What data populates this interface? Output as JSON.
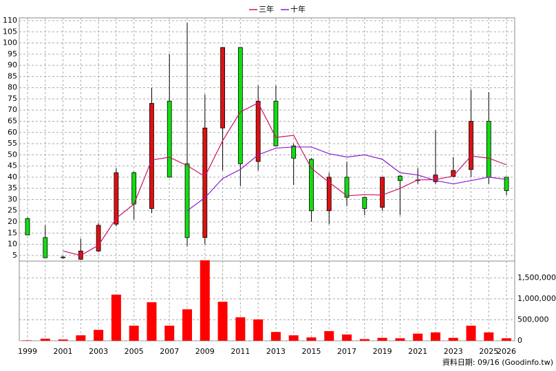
{
  "chart_data": {
    "type": "candlestick",
    "categories": [
      "1999",
      null,
      "2001",
      null,
      "2003",
      null,
      "2005",
      null,
      "2007",
      null,
      "2009",
      null,
      "2011",
      null,
      "2013",
      null,
      "2015",
      null,
      "2017",
      null,
      "2019",
      null,
      "2021",
      null,
      "2023",
      null,
      "2025",
      "2026"
    ],
    "open": [
      21.5,
      13,
      4.3,
      3.3,
      7,
      19,
      42,
      26,
      74,
      46,
      13,
      62,
      98,
      47,
      74,
      54,
      48,
      25,
      40,
      31,
      26.5,
      40.5,
      38.5,
      38,
      40.3,
      43.4,
      65,
      40
    ],
    "close": [
      14.2,
      4,
      4,
      7,
      18.5,
      42,
      28,
      73,
      40,
      13,
      62,
      98,
      46,
      74,
      54,
      48.5,
      25,
      40,
      31,
      26,
      40,
      38.5,
      38.8,
      41,
      43,
      65,
      40,
      34
    ],
    "high": [
      22,
      18.5,
      5,
      12.5,
      19.5,
      44,
      42.5,
      80,
      95,
      109,
      77,
      98,
      98,
      81,
      81,
      55,
      48.6,
      42,
      47,
      31,
      40,
      41,
      44,
      61,
      49,
      79,
      78,
      40
    ],
    "low": [
      14,
      4,
      3.5,
      3,
      6.5,
      18,
      21,
      24,
      40,
      9,
      10,
      43,
      36,
      43,
      54,
      36.5,
      20,
      19,
      27,
      23,
      25,
      23,
      37,
      37,
      40,
      40,
      37,
      32
    ],
    "up_color": "#dd1111",
    "down_color": "#11dd11",
    "series": [
      {
        "name": "三年",
        "color": "#cc1166",
        "values": [
          null,
          null,
          7,
          5,
          9.6,
          21.6,
          28,
          47.7,
          48.9,
          45.2,
          40.3,
          56.3,
          69.2,
          73.2,
          57.8,
          58.7,
          44,
          37.7,
          31.7,
          32.2,
          32,
          35,
          38.8,
          38.9,
          40.5,
          49.5,
          48.5,
          45.5
        ]
      },
      {
        "name": "十年",
        "color": "#8a1ad0",
        "values": [
          null,
          null,
          null,
          null,
          null,
          null,
          null,
          null,
          null,
          25,
          30.8,
          39.4,
          43.5,
          50,
          53,
          53.5,
          53.5,
          50.5,
          49,
          50,
          48,
          42,
          41,
          38.5,
          37,
          38.5,
          40,
          39
        ]
      }
    ],
    "ylim": [
      2.5,
      110
    ],
    "yticks": [
      5,
      10,
      15,
      20,
      25,
      30,
      35,
      40,
      45,
      50,
      55,
      60,
      65,
      70,
      75,
      80,
      85,
      90,
      95,
      100,
      105,
      110
    ],
    "grid": true,
    "volume": {
      "color": "#ff0000",
      "values": [
        10000,
        50000,
        30000,
        130000,
        260000,
        1100000,
        360000,
        920000,
        360000,
        750000,
        1920000,
        930000,
        560000,
        510000,
        210000,
        130000,
        80000,
        230000,
        150000,
        40000,
        70000,
        60000,
        170000,
        200000,
        70000,
        360000,
        200000,
        60000
      ],
      "ylim": [
        0,
        1900000
      ],
      "yticks": [
        0,
        {
          "value": 500000,
          "label": "500,000"
        },
        {
          "value": 1000000,
          "label": "1,000,000"
        },
        {
          "value": 1500000,
          "label": "1,500,000"
        }
      ]
    },
    "footnote": "資料日期: 09/16  (Goodinfo.tw)"
  }
}
